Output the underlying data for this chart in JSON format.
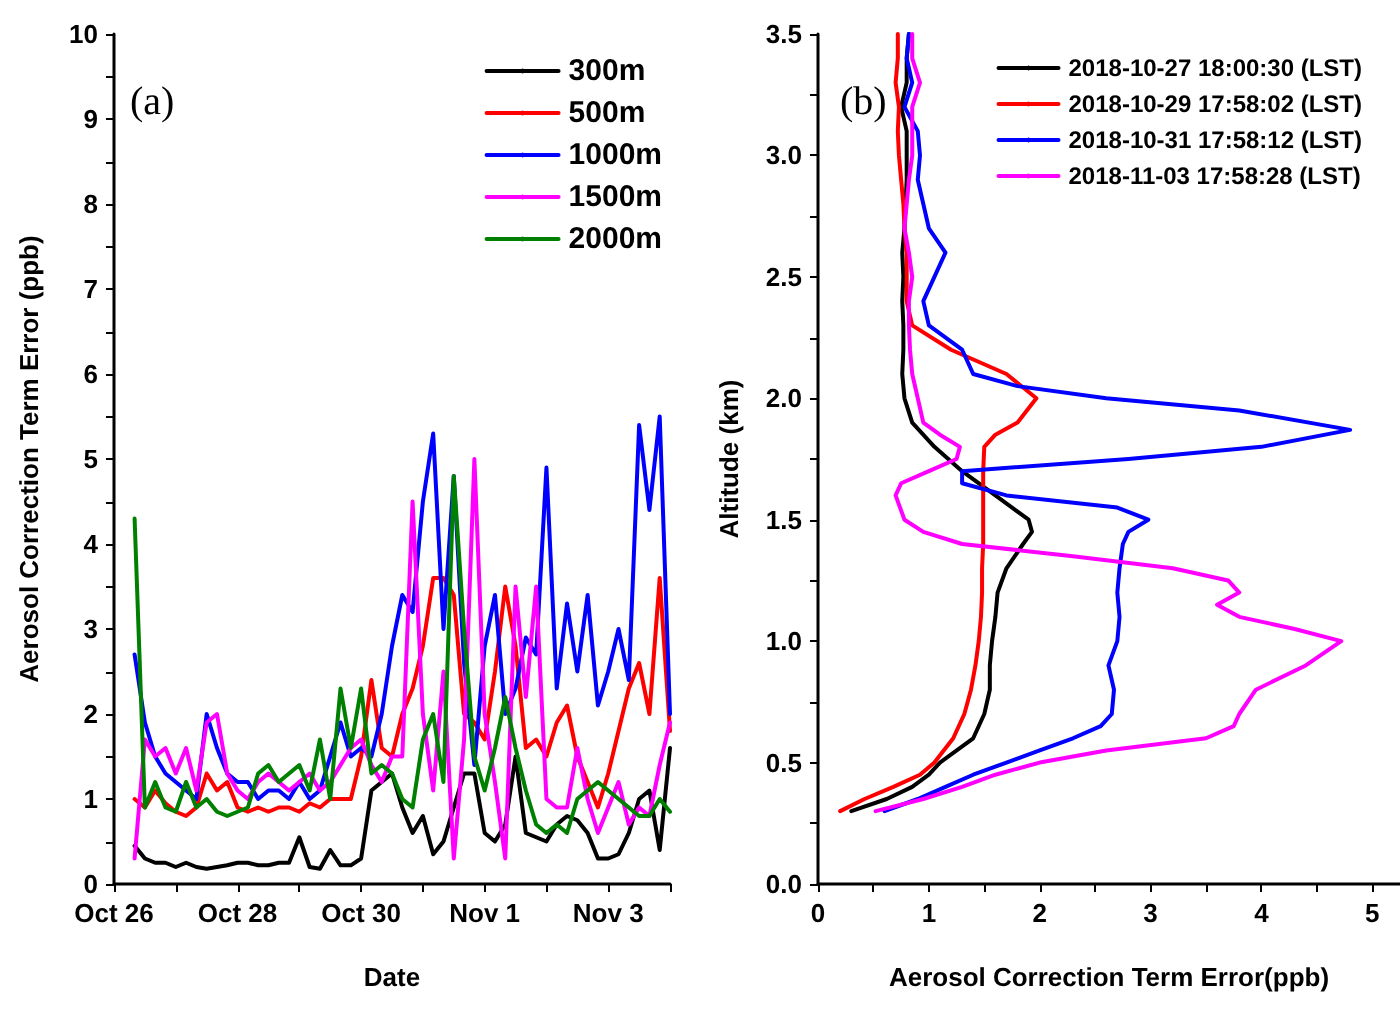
{
  "chart_data": [
    {
      "type": "line",
      "xlabel": "Date",
      "ylabel": "Aerosol Correction Term Error (ppb)",
      "annotations": [
        "(a)"
      ],
      "x": [
        "2018-10-26T08:00",
        "2018-10-26T12:00",
        "2018-10-26T16:00",
        "2018-10-26T20:00",
        "2018-10-27T00:00",
        "2018-10-27T04:00",
        "2018-10-27T08:00",
        "2018-10-27T12:00",
        "2018-10-27T16:00",
        "2018-10-27T20:00",
        "2018-10-28T00:00",
        "2018-10-28T04:00",
        "2018-10-28T08:00",
        "2018-10-28T12:00",
        "2018-10-28T16:00",
        "2018-10-28T20:00",
        "2018-10-29T00:00",
        "2018-10-29T04:00",
        "2018-10-29T08:00",
        "2018-10-29T12:00",
        "2018-10-29T16:00",
        "2018-10-29T20:00",
        "2018-10-30T00:00",
        "2018-10-30T04:00",
        "2018-10-30T08:00",
        "2018-10-30T12:00",
        "2018-10-30T16:00",
        "2018-10-30T20:00",
        "2018-10-31T00:00",
        "2018-10-31T04:00",
        "2018-10-31T08:00",
        "2018-10-31T12:00",
        "2018-10-31T16:00",
        "2018-10-31T20:00",
        "2018-11-01T00:00",
        "2018-11-01T04:00",
        "2018-11-01T08:00",
        "2018-11-01T12:00",
        "2018-11-01T16:00",
        "2018-11-01T20:00",
        "2018-11-02T00:00",
        "2018-11-02T04:00",
        "2018-11-02T08:00",
        "2018-11-02T12:00",
        "2018-11-02T16:00",
        "2018-11-02T20:00",
        "2018-11-03T00:00",
        "2018-11-03T04:00",
        "2018-11-03T08:00",
        "2018-11-03T12:00",
        "2018-11-03T16:00",
        "2018-11-03T20:00",
        "2018-11-04T00:00"
      ],
      "series": [
        {
          "name": "300m",
          "color": "#000000",
          "values": [
            0.45,
            0.3,
            0.25,
            0.25,
            0.2,
            0.25,
            0.2,
            0.18,
            0.2,
            0.22,
            0.25,
            0.25,
            0.22,
            0.22,
            0.25,
            0.25,
            0.55,
            0.2,
            0.18,
            0.4,
            0.22,
            0.22,
            0.3,
            1.1,
            1.2,
            1.3,
            0.9,
            0.6,
            0.8,
            0.35,
            0.5,
            0.9,
            1.3,
            1.3,
            0.6,
            0.5,
            0.7,
            1.5,
            0.6,
            0.55,
            0.5,
            0.7,
            0.8,
            0.75,
            0.6,
            0.3,
            0.3,
            0.35,
            0.6,
            1.0,
            1.1,
            0.4,
            1.6
          ]
        },
        {
          "name": "500m",
          "color": "#ff0000",
          "values": [
            1.0,
            0.9,
            1.1,
            0.95,
            0.85,
            0.8,
            0.9,
            1.3,
            1.1,
            1.2,
            0.9,
            0.85,
            0.9,
            0.85,
            0.9,
            0.9,
            0.85,
            0.95,
            0.9,
            1.0,
            1.0,
            1.0,
            1.5,
            2.4,
            1.6,
            1.5,
            2.0,
            2.3,
            2.8,
            3.6,
            3.6,
            3.4,
            2.0,
            1.9,
            1.7,
            2.5,
            3.5,
            2.8,
            1.6,
            1.7,
            1.5,
            1.9,
            2.1,
            1.5,
            1.2,
            0.9,
            1.3,
            1.8,
            2.3,
            2.6,
            2.0,
            3.6,
            1.8
          ]
        },
        {
          "name": "1000m",
          "color": "#0000ff",
          "values": [
            2.7,
            1.9,
            1.5,
            1.3,
            1.2,
            1.1,
            1.0,
            2.0,
            1.6,
            1.3,
            1.2,
            1.2,
            1.0,
            1.1,
            1.1,
            1.0,
            1.2,
            1.0,
            1.1,
            1.5,
            1.9,
            1.5,
            1.6,
            1.5,
            2.0,
            2.8,
            3.4,
            3.2,
            4.5,
            5.3,
            3.0,
            4.8,
            2.6,
            1.4,
            2.8,
            3.4,
            2.0,
            2.3,
            2.9,
            2.7,
            4.9,
            2.3,
            3.3,
            2.5,
            3.4,
            2.1,
            2.5,
            3.0,
            2.4,
            5.4,
            4.4,
            5.5,
            2.0
          ]
        },
        {
          "name": "1500m",
          "color": "#ff00ff",
          "values": [
            0.3,
            1.7,
            1.5,
            1.6,
            1.3,
            1.6,
            1.1,
            1.9,
            2.0,
            1.3,
            1.1,
            1.0,
            1.2,
            1.3,
            1.2,
            1.1,
            1.2,
            1.3,
            1.1,
            1.2,
            1.4,
            1.6,
            1.7,
            1.4,
            1.2,
            1.5,
            1.5,
            4.5,
            2.0,
            1.1,
            2.5,
            0.3,
            1.7,
            5.0,
            2.0,
            1.2,
            0.3,
            3.5,
            2.2,
            3.5,
            1.0,
            0.9,
            0.9,
            1.6,
            1.0,
            0.6,
            0.9,
            1.2,
            0.7,
            0.9,
            0.8,
            1.4,
            1.9
          ]
        },
        {
          "name": "2000m",
          "color": "#008000",
          "values": [
            4.3,
            0.9,
            1.2,
            0.9,
            0.85,
            1.2,
            0.9,
            1.0,
            0.85,
            0.8,
            0.85,
            0.9,
            1.3,
            1.4,
            1.2,
            1.3,
            1.4,
            1.1,
            1.7,
            1.0,
            2.3,
            1.6,
            2.3,
            1.3,
            1.4,
            1.3,
            1.0,
            0.9,
            1.7,
            2.0,
            1.2,
            4.8,
            3.0,
            1.5,
            1.1,
            1.6,
            2.2,
            1.6,
            1.1,
            0.7,
            0.6,
            0.7,
            0.6,
            1.0,
            1.1,
            1.2,
            1.1,
            1.0,
            0.9,
            0.8,
            0.8,
            1.0,
            0.85
          ]
        }
      ],
      "xlim": [
        "2018-10-26",
        "2018-11-04"
      ],
      "xticks": [
        {
          "value": "2018-10-26",
          "label": "Oct 26"
        },
        {
          "value": "2018-10-27",
          "label": null
        },
        {
          "value": "2018-10-28",
          "label": "Oct 28"
        },
        {
          "value": "2018-10-29",
          "label": null
        },
        {
          "value": "2018-10-30",
          "label": "Oct 30"
        },
        {
          "value": "2018-10-31",
          "label": null
        },
        {
          "value": "2018-11-01",
          "label": "Nov 1"
        },
        {
          "value": "2018-11-02",
          "label": null
        },
        {
          "value": "2018-11-03",
          "label": "Nov 3"
        },
        {
          "value": "2018-11-04",
          "label": null
        }
      ],
      "ylim": [
        0,
        10
      ],
      "yticks": [
        0,
        {
          "value": 0.5,
          "label": null
        },
        1,
        {
          "value": 1.5,
          "label": null
        },
        2,
        {
          "value": 2.5,
          "label": null
        },
        3,
        {
          "value": 3.5,
          "label": null
        },
        4,
        {
          "value": 4.5,
          "label": null
        },
        5,
        {
          "value": 5.5,
          "label": null
        },
        6,
        {
          "value": 6.5,
          "label": null
        },
        7,
        {
          "value": 7.5,
          "label": null
        },
        8,
        {
          "value": 8.5,
          "label": null
        },
        9,
        {
          "value": 9.5,
          "label": null
        },
        10
      ],
      "grid": false,
      "legend": "top right",
      "marker": "none",
      "line_style": "solid"
    },
    {
      "type": "line",
      "xlabel": "Aerosol Correction Term Error(ppb)",
      "ylabel": "Altitude (km)",
      "annotations": [
        "(b)"
      ],
      "series": [
        {
          "name": "2018-10-27 18:00:30 (LST)",
          "color": "#000000",
          "x": [
            0.3,
            0.62,
            0.85,
            1.0,
            1.1,
            1.4,
            1.5,
            1.55,
            1.55,
            1.57,
            1.6,
            1.62,
            1.7,
            1.85,
            1.93,
            1.9,
            1.6,
            1.3,
            1.05,
            0.85,
            0.78,
            0.76,
            0.77,
            0.77,
            0.76,
            0.77,
            0.76,
            0.78,
            0.79,
            0.8,
            0.8,
            0.8,
            0.75,
            0.8,
            0.8,
            0.82
          ],
          "values": [
            0.3,
            0.35,
            0.4,
            0.45,
            0.5,
            0.6,
            0.7,
            0.8,
            0.9,
            1.0,
            1.1,
            1.2,
            1.3,
            1.4,
            1.45,
            1.5,
            1.6,
            1.7,
            1.8,
            1.9,
            2.0,
            2.1,
            2.2,
            2.3,
            2.4,
            2.5,
            2.6,
            2.7,
            2.8,
            2.9,
            3.0,
            3.1,
            3.2,
            3.3,
            3.4,
            3.5
          ]
        },
        {
          "name": "2018-10-29 17:58:02 (LST)",
          "color": "#ff0000",
          "x": [
            0.2,
            0.42,
            0.68,
            0.92,
            1.05,
            1.22,
            1.32,
            1.38,
            1.42,
            1.45,
            1.47,
            1.48,
            1.48,
            1.49,
            1.49,
            1.49,
            1.49,
            1.5,
            1.6,
            1.8,
            1.97,
            1.7,
            1.2,
            0.85,
            0.8,
            0.8,
            0.8,
            0.78,
            0.77,
            0.75,
            0.73,
            0.72,
            0.73,
            0.7,
            0.72,
            0.72
          ],
          "values": [
            0.3,
            0.35,
            0.4,
            0.45,
            0.5,
            0.6,
            0.7,
            0.8,
            0.9,
            1.0,
            1.1,
            1.2,
            1.3,
            1.4,
            1.5,
            1.6,
            1.7,
            1.8,
            1.85,
            1.9,
            2.0,
            2.1,
            2.2,
            2.3,
            2.4,
            2.5,
            2.6,
            2.7,
            2.8,
            2.9,
            3.0,
            3.1,
            3.2,
            3.3,
            3.4,
            3.5
          ]
        },
        {
          "name": "2018-10-31 17:58:12 (LST)",
          "color": "#0000ff",
          "x": [
            0.6,
            0.9,
            1.15,
            1.4,
            1.7,
            2.0,
            2.3,
            2.55,
            2.65,
            2.67,
            2.62,
            2.7,
            2.72,
            2.7,
            2.72,
            2.75,
            2.8,
            2.98,
            2.7,
            1.7,
            1.3,
            1.3,
            2.8,
            4.0,
            4.8,
            3.8,
            2.6,
            1.8,
            1.4,
            1.3,
            1.0,
            0.95,
            1.05,
            1.15,
            1.0,
            0.95,
            0.9,
            0.92,
            0.9,
            0.78,
            0.85,
            0.8,
            0.82
          ],
          "values": [
            0.3,
            0.35,
            0.4,
            0.45,
            0.5,
            0.55,
            0.6,
            0.65,
            0.7,
            0.8,
            0.9,
            1.0,
            1.1,
            1.2,
            1.3,
            1.4,
            1.45,
            1.5,
            1.55,
            1.6,
            1.65,
            1.7,
            1.75,
            1.8,
            1.87,
            1.95,
            2.0,
            2.05,
            2.1,
            2.2,
            2.3,
            2.4,
            2.5,
            2.6,
            2.7,
            2.8,
            2.9,
            3.0,
            3.1,
            3.2,
            3.3,
            3.4,
            3.5
          ]
        },
        {
          "name": "2018-11-03 17:58:28 (LST)",
          "color": "#ff00ff",
          "x": [
            0.52,
            0.95,
            1.3,
            1.6,
            2.0,
            2.6,
            3.5,
            3.75,
            3.8,
            3.95,
            4.4,
            4.72,
            4.3,
            3.8,
            3.6,
            3.8,
            3.7,
            3.2,
            2.3,
            1.3,
            0.95,
            0.78,
            0.7,
            0.75,
            1.0,
            1.25,
            1.28,
            1.1,
            0.95,
            0.9,
            0.85,
            0.83,
            0.82,
            0.82,
            0.85,
            0.82,
            0.78,
            0.8,
            0.82,
            0.85,
            0.85,
            0.85,
            0.92,
            0.85,
            0.85
          ],
          "values": [
            0.3,
            0.35,
            0.4,
            0.45,
            0.5,
            0.55,
            0.6,
            0.65,
            0.7,
            0.8,
            0.9,
            1.0,
            1.05,
            1.1,
            1.15,
            1.2,
            1.25,
            1.3,
            1.35,
            1.4,
            1.45,
            1.5,
            1.6,
            1.65,
            1.7,
            1.75,
            1.8,
            1.85,
            1.9,
            2.0,
            2.1,
            2.2,
            2.3,
            2.4,
            2.5,
            2.6,
            2.7,
            2.8,
            2.9,
            3.0,
            3.1,
            3.2,
            3.3,
            3.4,
            3.5
          ]
        }
      ],
      "xlim": [
        0,
        5.25
      ],
      "xticks": [
        0,
        {
          "value": 0.5,
          "label": null
        },
        1,
        {
          "value": 1.5,
          "label": null
        },
        2,
        {
          "value": 2.5,
          "label": null
        },
        3,
        {
          "value": 3.5,
          "label": null
        },
        4,
        {
          "value": 4.5,
          "label": null
        },
        5
      ],
      "ylim": [
        0,
        3.5
      ],
      "yticks": [
        {
          "value": 0,
          "label": "0.0"
        },
        {
          "value": 0.25,
          "label": null
        },
        {
          "value": 0.5,
          "label": "0.5"
        },
        {
          "value": 0.75,
          "label": null
        },
        {
          "value": 1,
          "label": "1.0"
        },
        {
          "value": 1.25,
          "label": null
        },
        {
          "value": 1.5,
          "label": "1.5"
        },
        {
          "value": 1.75,
          "label": null
        },
        {
          "value": 2,
          "label": "2.0"
        },
        {
          "value": 2.25,
          "label": null
        },
        {
          "value": 2.5,
          "label": "2.5"
        },
        {
          "value": 2.75,
          "label": null
        },
        {
          "value": 3,
          "label": "3.0"
        },
        {
          "value": 3.25,
          "label": null
        },
        {
          "value": 3.5,
          "label": "3.5"
        }
      ],
      "grid": false,
      "legend": "top right",
      "marker": "none",
      "line_style": "solid"
    }
  ]
}
